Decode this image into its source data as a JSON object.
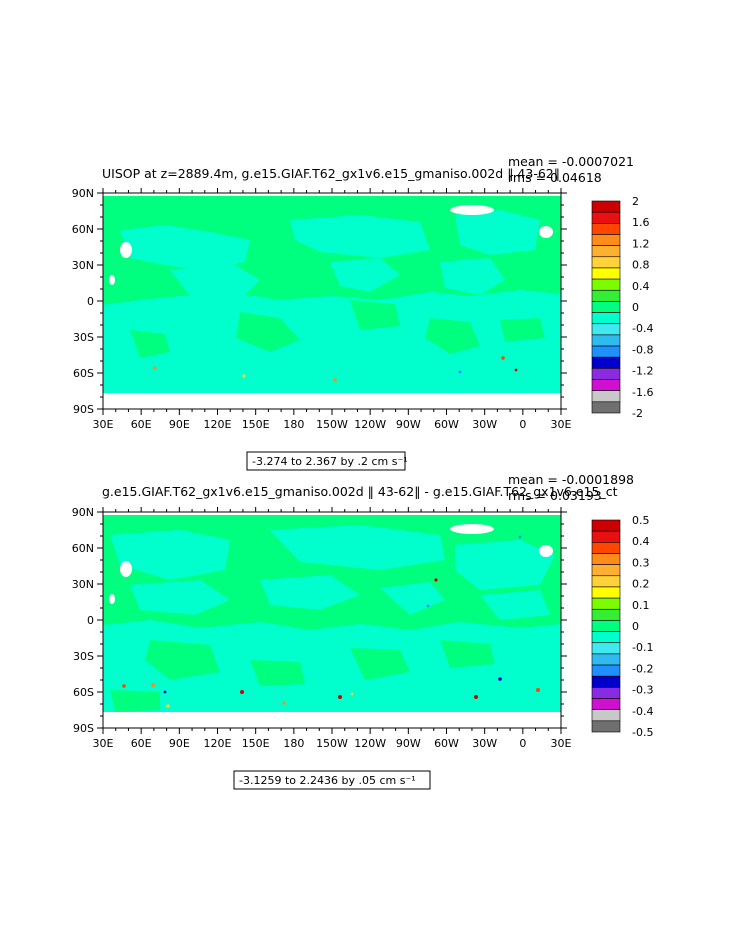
{
  "chart_data": [
    {
      "type": "heatmap",
      "title": "UISOP at z=2889.4m, g.e15.GIAF.T62_gx1v6.e15_gmaniso.002d ‖ 43-62‖",
      "stats": {
        "mean": "mean = -0.0007021",
        "rms": "rms = 0.04618"
      },
      "x_ticks": [
        "30E",
        "60E",
        "90E",
        "120E",
        "150E",
        "180",
        "150W",
        "120W",
        "90W",
        "60W",
        "30W",
        "0",
        "30E"
      ],
      "y_ticks": [
        "90N",
        "60N",
        "30N",
        "0",
        "30S",
        "60S",
        "90S"
      ],
      "range_label": "-3.274 to 2.367 by .2 cm s⁻¹",
      "colorbar": {
        "labels": [
          "2",
          "1.6",
          "1.2",
          "0.8",
          "0.4",
          "0",
          "-0.4",
          "-0.8",
          "-1.2",
          "-1.6",
          "-2"
        ],
        "colors": [
          "#cc0000",
          "#e81010",
          "#ff4500",
          "#ff8c1a",
          "#ffb030",
          "#ffd23a",
          "#ffff00",
          "#7cfc00",
          "#33ee33",
          "#00ff7f",
          "#00ffcc",
          "#40e8f0",
          "#30bbee",
          "#1e90ff",
          "#0000cd",
          "#8a2be2",
          "#d010d0",
          "#c8c8c8",
          "#707070"
        ]
      }
    },
    {
      "type": "heatmap",
      "title": "g.e15.GIAF.T62_gx1v6.e15_gmaniso.002d ‖ 43-62‖ - g.e15.GIAF.T62_gx1v6.e15_ct",
      "stats": {
        "mean": "mean = -0.0001898",
        "rms": "rms = 0.03193"
      },
      "x_ticks": [
        "30E",
        "60E",
        "90E",
        "120E",
        "150E",
        "180",
        "150W",
        "120W",
        "90W",
        "60W",
        "30W",
        "0",
        "30E"
      ],
      "y_ticks": [
        "90N",
        "60N",
        "30N",
        "0",
        "30S",
        "60S",
        "90S"
      ],
      "range_label": "-3.1259 to 2.2436 by .05 cm s⁻¹",
      "colorbar": {
        "labels": [
          "0.5",
          "0.4",
          "0.3",
          "0.2",
          "0.1",
          "0",
          "-0.1",
          "-0.2",
          "-0.3",
          "-0.4",
          "-0.5"
        ],
        "colors": [
          "#cc0000",
          "#e81010",
          "#ff4500",
          "#ff8c1a",
          "#ffb030",
          "#ffd23a",
          "#ffff00",
          "#7cfc00",
          "#33ee33",
          "#00ff7f",
          "#00ffcc",
          "#40e8f0",
          "#30bbee",
          "#1e90ff",
          "#0000cd",
          "#8a2be2",
          "#d010d0",
          "#c8c8c8",
          "#707070"
        ]
      }
    }
  ],
  "palette": {
    "background": "#00ff7f",
    "ocean_negative": "#00ffcc",
    "land": "#ffffff"
  }
}
